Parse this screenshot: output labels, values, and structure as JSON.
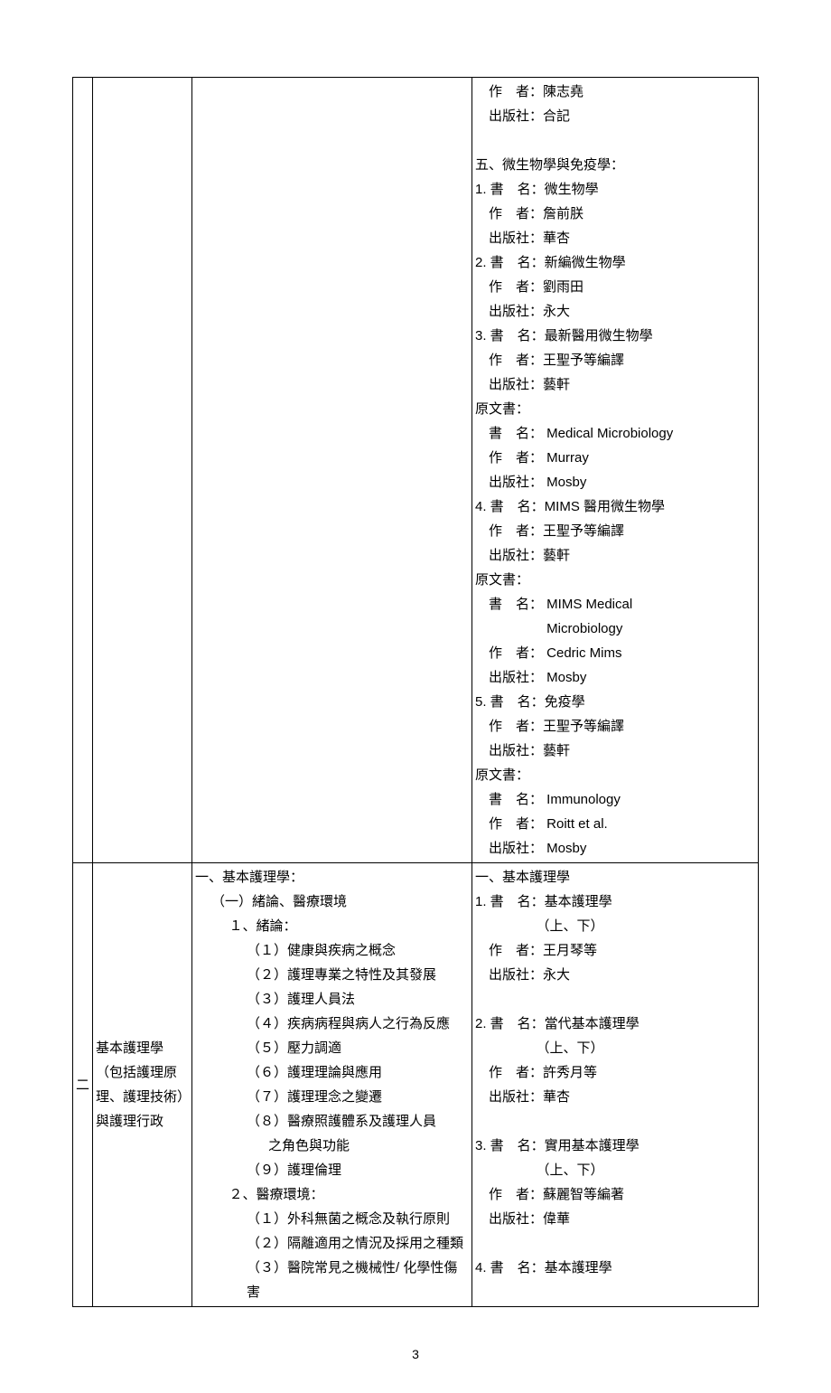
{
  "page_number": "3",
  "row1": {
    "books": [
      "　作　者：陳志堯",
      "　出版社：合記",
      "",
      "五、微生物學與免疫學：",
      "1. 書　名：微生物學",
      "　作　者：詹前朕",
      "　出版社：華杏",
      "2. 書　名：新編微生物學",
      "　作　者：劉雨田",
      "　出版社：永大",
      "3. 書　名：最新醫用微生物學",
      "　作　者：王聖予等編譯",
      "　出版社：藝軒",
      "原文書：",
      "　書　名： Medical Microbiology",
      "　作　者： Murray",
      "　出版社： Mosby",
      "4. 書　名：MIMS 醫用微生物學",
      "　作　者：王聖予等編譯",
      "　出版社：藝軒",
      "原文書：",
      "　書　名： MIMS Medical",
      "　　　　　 Microbiology",
      "　作　者： Cedric Mims",
      "　出版社： Mosby",
      "5. 書　名：免疫學",
      "　作　者：王聖予等編譯",
      "　出版社：藝軒",
      "原文書：",
      "　書　名： Immunology",
      "　作　者： Roitt et al.",
      "　出版社： Mosby"
    ]
  },
  "row2": {
    "num": "二",
    "subject": "基本護理學（包括護理原理、護理技術）與護理行政",
    "outline": [
      {
        "t": "一、基本護理學：",
        "cls": ""
      },
      {
        "t": "（一）緒論、醫療環境",
        "cls": "indent1"
      },
      {
        "t": "１、緒論：",
        "cls": "indent2"
      },
      {
        "t": "（１）健康與疾病之概念",
        "cls": "indent3"
      },
      {
        "t": "（２）護理專業之特性及其發展",
        "cls": "indent3"
      },
      {
        "t": "（３）護理人員法",
        "cls": "indent3"
      },
      {
        "t": "（４）疾病病程與病人之行為反應",
        "cls": "indent3"
      },
      {
        "t": "（５）壓力調適",
        "cls": "indent3"
      },
      {
        "t": "（６）護理理論與應用",
        "cls": "indent3"
      },
      {
        "t": "（７）護理理念之變遷",
        "cls": "indent3"
      },
      {
        "t": "（８）醫療照護體系及護理人員",
        "cls": "indent3"
      },
      {
        "t": "之角色與功能",
        "cls": "indent4"
      },
      {
        "t": "（９）護理倫理",
        "cls": "indent3"
      },
      {
        "t": "２、醫療環境：",
        "cls": "indent2"
      },
      {
        "t": "（１）外科無菌之概念及執行原則",
        "cls": "indent3"
      },
      {
        "t": "（２）隔離適用之情況及採用之種類",
        "cls": "indent3"
      },
      {
        "t": "（３）醫院常見之機械性/ 化學性傷害",
        "cls": "indent3"
      }
    ],
    "books": [
      "一、基本護理學",
      "1. 書　名：基本護理學",
      "　　　　　（上、下）",
      "　作　者：王月琴等",
      "　出版社：永大",
      "",
      "2. 書　名：當代基本護理學",
      "　　　　　（上、下）",
      "　作　者：許秀月等",
      "　出版社：華杏",
      "",
      "3. 書　名：實用基本護理學",
      "　　　　　（上、下）",
      "　作　者：蘇麗智等編著",
      "　出版社：偉華",
      "",
      "4. 書　名：基本護理學"
    ]
  }
}
